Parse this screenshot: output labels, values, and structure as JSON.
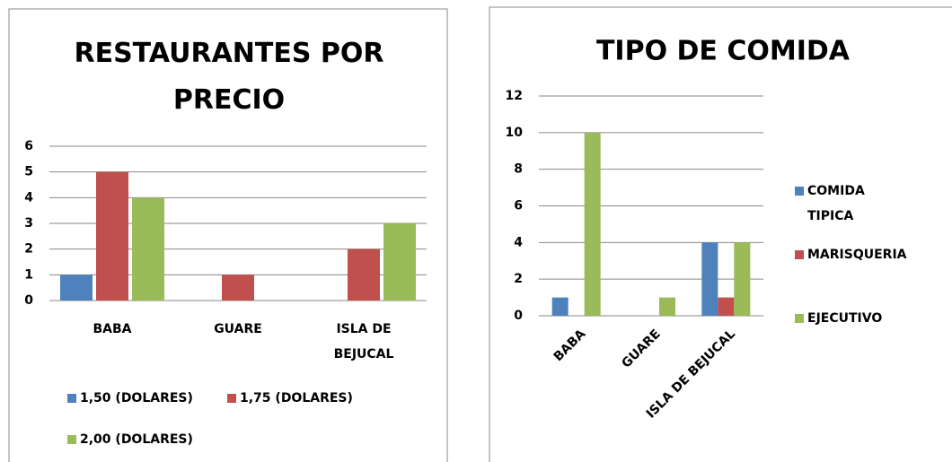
{
  "chart_data": [
    {
      "type": "bar",
      "title": "RESTAURANTES POR PRECIO",
      "categories": [
        "BABA",
        "GUARE",
        "ISLA DE BEJUCAL"
      ],
      "series": [
        {
          "name": "1,50 (DOLARES)",
          "color": "#4f81bd",
          "values": [
            1,
            0,
            0
          ]
        },
        {
          "name": "1,75 (DOLARES)",
          "color": "#c0504d",
          "values": [
            5,
            1,
            2
          ]
        },
        {
          "name": "2,00 (DOLARES)",
          "color": "#9bbb59",
          "values": [
            4,
            0,
            3
          ]
        }
      ],
      "ylim": [
        0,
        6
      ],
      "yticks": [
        0,
        1,
        2,
        3,
        4,
        5,
        6
      ],
      "grid": true,
      "legend": "bottom"
    },
    {
      "type": "bar",
      "title": "TIPO DE COMIDA",
      "categories": [
        "BABA",
        "GUARE",
        "ISLA DE BEJUCAL"
      ],
      "series": [
        {
          "name": "COMIDA TIPICA",
          "color": "#4f81bd",
          "values": [
            1,
            0,
            4
          ]
        },
        {
          "name": "MARISQUERIA",
          "color": "#c0504d",
          "values": [
            0,
            0,
            1
          ]
        },
        {
          "name": "EJECUTIVO",
          "color": "#9bbb59",
          "values": [
            10,
            1,
            4
          ]
        }
      ],
      "ylim": [
        0,
        12
      ],
      "yticks": [
        0,
        2,
        4,
        6,
        8,
        10,
        12
      ],
      "grid": true,
      "legend": "right"
    }
  ]
}
